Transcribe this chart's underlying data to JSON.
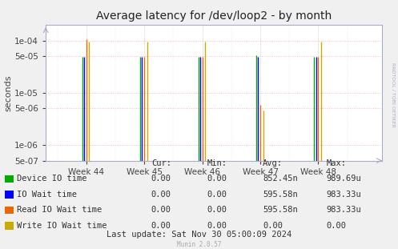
{
  "title": "Average latency for /dev/loop2 - by month",
  "ylabel": "seconds",
  "background_color": "#f0f0f0",
  "plot_bg_color": "#ffffff",
  "grid_color_h": "#ffaaaa",
  "grid_color_v": "#aaaacc",
  "x_ticks": [
    44,
    45,
    46,
    47,
    48
  ],
  "x_tick_labels": [
    "Week 44",
    "Week 45",
    "Week 46",
    "Week 47",
    "Week 48"
  ],
  "ymin": 5e-07,
  "ymax": 0.0002,
  "xmin": 43.3,
  "xmax": 49.1,
  "series": [
    {
      "name": "Device IO time",
      "color": "#00aa00",
      "offsets": [
        -0.07,
        -0.07,
        -0.07,
        -0.07,
        -0.07
      ],
      "values": [
        4.9e-05,
        4.9e-05,
        4.9e-05,
        5.2e-05,
        4.9e-05
      ]
    },
    {
      "name": "IO Wait time",
      "color": "#0000ff",
      "offsets": [
        -0.04,
        -0.04,
        -0.04,
        -0.04,
        -0.04
      ],
      "values": [
        4.9e-05,
        4.9e-05,
        4.9e-05,
        4.9e-05,
        4.9e-05
      ]
    },
    {
      "name": "Read IO Wait time",
      "color": "#ee6600",
      "offsets": [
        0.0,
        0.0,
        0.0,
        0.0,
        0.0
      ],
      "values": [
        0.000105,
        4.9e-05,
        4.9e-05,
        5.9e-06,
        4.9e-05
      ]
    },
    {
      "name": "Write IO Wait time",
      "color": "#ccaa00",
      "offsets": [
        0.05,
        0.05,
        0.05,
        0.05,
        0.05
      ],
      "values": [
        9.5e-05,
        9.5e-05,
        9.5e-05,
        4.5e-06,
        9.5e-05
      ]
    }
  ],
  "x_positions": [
    44,
    45,
    46,
    47,
    48
  ],
  "legend_items": [
    {
      "label": "Device IO time",
      "color": "#00aa00"
    },
    {
      "label": "IO Wait time",
      "color": "#0000ff"
    },
    {
      "label": "Read IO Wait time",
      "color": "#ee6600"
    },
    {
      "label": "Write IO Wait time",
      "color": "#ccaa00"
    }
  ],
  "legend_table": {
    "header": [
      "Cur:",
      "Min:",
      "Avg:",
      "Max:"
    ],
    "rows": [
      [
        "0.00",
        "0.00",
        "852.45n",
        "989.69u"
      ],
      [
        "0.00",
        "0.00",
        "595.58n",
        "983.33u"
      ],
      [
        "0.00",
        "0.00",
        "595.58n",
        "983.33u"
      ],
      [
        "0.00",
        "0.00",
        "0.00",
        "0.00"
      ]
    ]
  },
  "footer": "Last update: Sat Nov 30 05:00:09 2024",
  "munin_version": "Munin 2.0.57",
  "rrdtool_label": "RRDTOOL / TOBI OETIKER",
  "title_fontsize": 10,
  "axis_fontsize": 7.5,
  "legend_fontsize": 7.5
}
